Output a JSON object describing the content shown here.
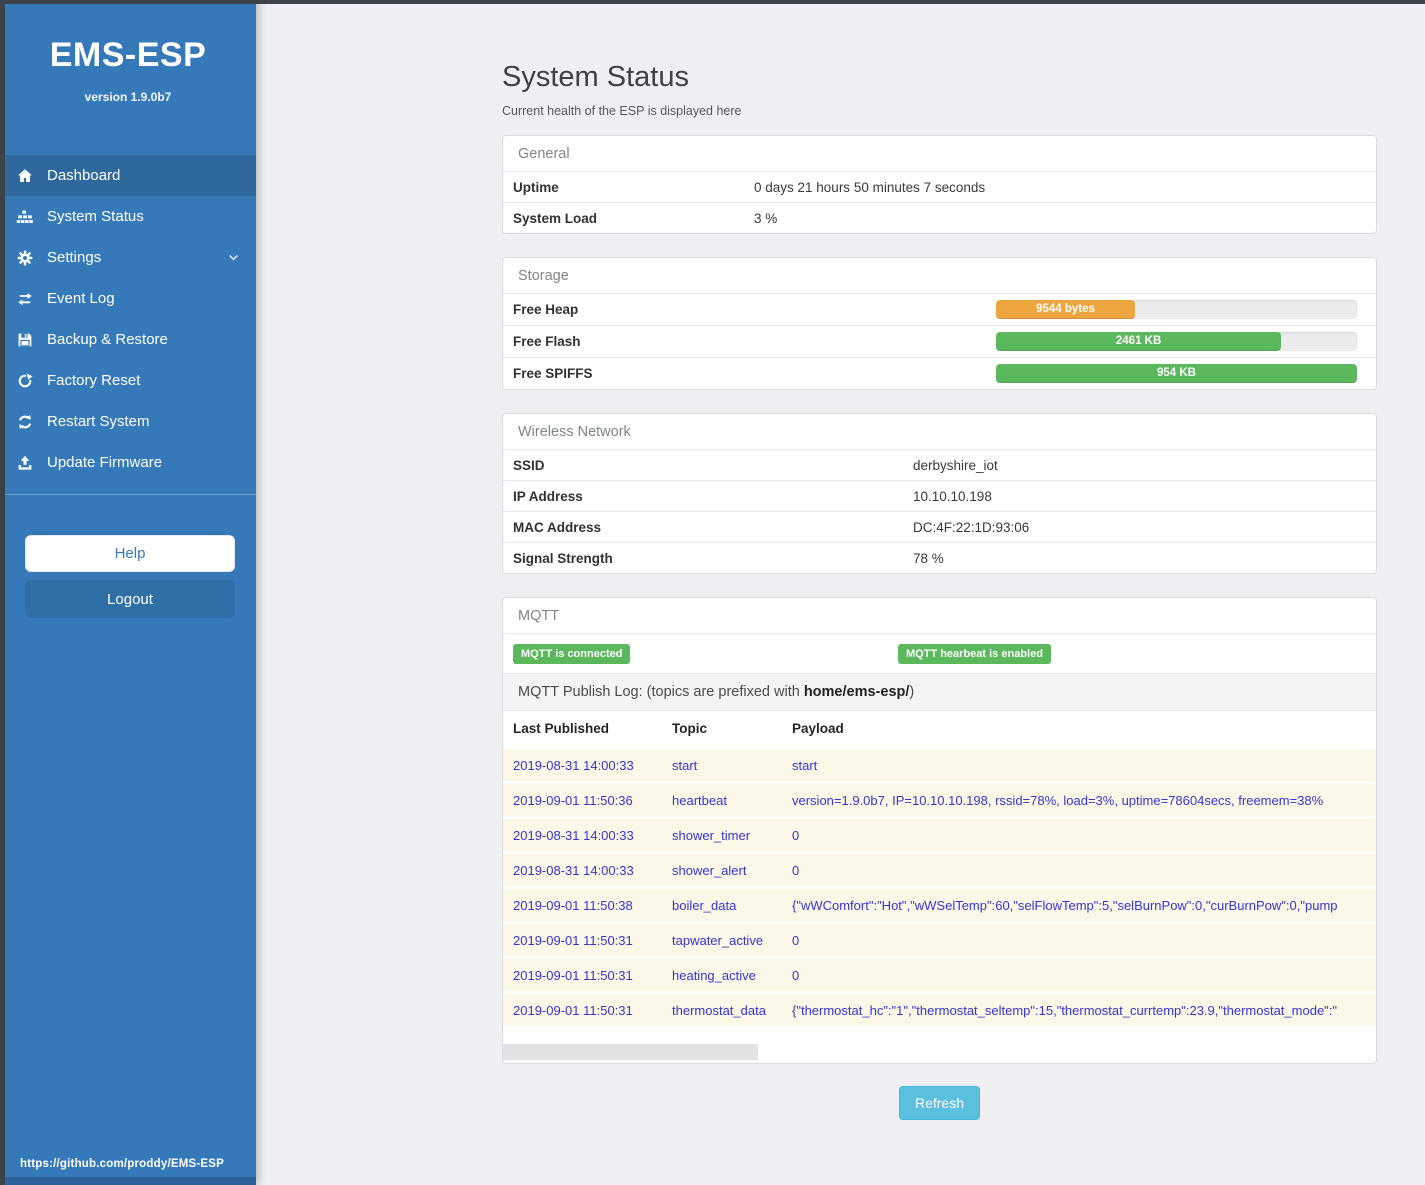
{
  "sidebar": {
    "brand": "EMS-ESP",
    "version": "version 1.9.0b7",
    "items": [
      {
        "label": "Dashboard",
        "icon": "home-icon",
        "active": true
      },
      {
        "label": "System Status",
        "icon": "sitemap-icon",
        "active": false
      },
      {
        "label": "Settings",
        "icon": "gear-icon",
        "active": false,
        "chevron": "chevron-down-icon"
      },
      {
        "label": "Event Log",
        "icon": "exchange-arrows-icon",
        "active": false
      },
      {
        "label": "Backup & Restore",
        "icon": "save-floppy-icon",
        "active": false
      },
      {
        "label": "Factory Reset",
        "icon": "rotate-cw-icon",
        "active": false
      },
      {
        "label": "Restart System",
        "icon": "refresh-icon",
        "active": false
      },
      {
        "label": "Update Firmware",
        "icon": "upload-icon",
        "active": false
      }
    ],
    "help_label": "Help",
    "logout_label": "Logout",
    "footer_link": "https://github.com/proddy/EMS-ESP"
  },
  "page": {
    "title": "System Status",
    "subtitle": "Current health of the ESP is displayed here"
  },
  "panels": {
    "general": {
      "title": "General",
      "rows": [
        {
          "label": "Uptime",
          "value": "0 days 21 hours 50 minutes 7 seconds"
        },
        {
          "label": "System Load",
          "value": "3 %"
        }
      ]
    },
    "storage": {
      "title": "Storage",
      "rows": [
        {
          "label": "Free Heap",
          "bar_label": "9544 bytes",
          "percent": 38.5,
          "color": "#eda63f"
        },
        {
          "label": "Free Flash",
          "bar_label": "2461 KB",
          "percent": 79,
          "color": "#5cb85c"
        },
        {
          "label": "Free SPIFFS",
          "bar_label": "954 KB",
          "percent": 100,
          "color": "#5cb85c"
        }
      ]
    },
    "wireless": {
      "title": "Wireless Network",
      "rows": [
        {
          "label": "SSID",
          "value": "derbyshire_iot"
        },
        {
          "label": "IP Address",
          "value": "10.10.10.198"
        },
        {
          "label": "MAC Address",
          "value": "DC:4F:22:1D:93:06"
        },
        {
          "label": "Signal Strength",
          "value": "78 %"
        }
      ]
    },
    "mqtt": {
      "title": "MQTT",
      "badges": [
        {
          "label": "MQTT is connected"
        },
        {
          "label": "MQTT hearbeat is enabled"
        }
      ],
      "publish_log": {
        "prefix": "MQTT Publish Log: (topics are prefixed with ",
        "topic_prefix": "home/ems-esp/",
        "suffix": ")"
      },
      "table": {
        "headers": [
          "Last Published",
          "Topic",
          "Payload"
        ],
        "rows": [
          {
            "time": "2019-08-31 14:00:33",
            "topic": "start",
            "payload": "start"
          },
          {
            "time": "2019-09-01 11:50:36",
            "topic": "heartbeat",
            "payload": "version=1.9.0b7, IP=10.10.10.198, rssid=78%, load=3%, uptime=78604secs, freemem=38%"
          },
          {
            "time": "2019-08-31 14:00:33",
            "topic": "shower_timer",
            "payload": "0"
          },
          {
            "time": "2019-08-31 14:00:33",
            "topic": "shower_alert",
            "payload": "0"
          },
          {
            "time": "2019-09-01 11:50:38",
            "topic": "boiler_data",
            "payload": "{\"wWComfort\":\"Hot\",\"wWSelTemp\":60,\"selFlowTemp\":5,\"selBurnPow\":0,\"curBurnPow\":0,\"pump"
          },
          {
            "time": "2019-09-01 11:50:31",
            "topic": "tapwater_active",
            "payload": "0"
          },
          {
            "time": "2019-09-01 11:50:31",
            "topic": "heating_active",
            "payload": "0"
          },
          {
            "time": "2019-09-01 11:50:31",
            "topic": "thermostat_data",
            "payload": "{\"thermostat_hc\":\"1\",\"thermostat_seltemp\":15,\"thermostat_currtemp\":23.9,\"thermostat_mode\":\""
          }
        ]
      }
    }
  },
  "refresh_label": "Refresh",
  "colors": {
    "sidebar": "#3679b8",
    "sidebar_active": "#2e689c",
    "logout_button": "#2f6fa5",
    "badge_green": "#5cb85c",
    "warning_orange": "#eda63f",
    "success_green": "#5cb85c",
    "info_cyan": "#5bc0de",
    "log_row_bg": "#fcf8e7",
    "log_text_blue": "#3434d4"
  }
}
